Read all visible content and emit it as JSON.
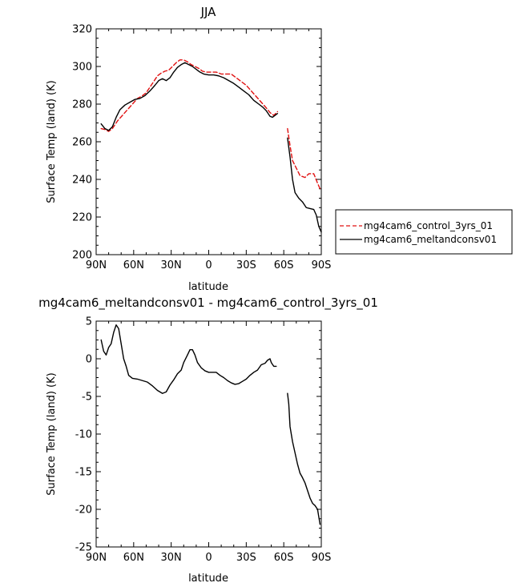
{
  "chart_data": [
    {
      "type": "line",
      "title": "JJA",
      "xlabel": "latitude",
      "ylabel": "Surface Temp (land) (K)",
      "x_tick_labels": [
        "90N",
        "60N",
        "30N",
        "0",
        "30S",
        "60S",
        "90S"
      ],
      "x_tick_values": [
        90,
        60,
        30,
        0,
        -30,
        -60,
        -90
      ],
      "xlim": [
        90,
        -90
      ],
      "ylim": [
        200,
        320
      ],
      "y_ticks": [
        200,
        220,
        240,
        260,
        280,
        300,
        320
      ],
      "legend_position": "right",
      "series": [
        {
          "name": "mg4cam6_control_3yrs_01",
          "color": "#e01010",
          "dash": "dashed",
          "segments": [
            [
              [
                86,
                267
              ],
              [
                83,
                266.5
              ],
              [
                80,
                265.5
              ],
              [
                77,
                267
              ],
              [
                73,
                271
              ],
              [
                69,
                274
              ],
              [
                65,
                277
              ],
              [
                61,
                280
              ],
              [
                57,
                283
              ],
              [
                53,
                284.5
              ],
              [
                50,
                286
              ],
              [
                47,
                289
              ],
              [
                44,
                292
              ],
              [
                41,
                295
              ],
              [
                38,
                296.5
              ],
              [
                35,
                297.5
              ],
              [
                32,
                298
              ],
              [
                29,
                300
              ],
              [
                26,
                302
              ],
              [
                23,
                303.5
              ],
              [
                20,
                303.5
              ],
              [
                17,
                302.5
              ],
              [
                14,
                301
              ],
              [
                11,
                300
              ],
              [
                8,
                299
              ],
              [
                5,
                297.5
              ],
              [
                2,
                297
              ],
              [
                -2,
                297
              ],
              [
                -6,
                297
              ],
              [
                -10,
                296
              ],
              [
                -14,
                296
              ],
              [
                -18,
                296
              ],
              [
                -22,
                294
              ],
              [
                -26,
                292
              ],
              [
                -30,
                290
              ],
              [
                -34,
                287
              ],
              [
                -38,
                284
              ],
              [
                -42,
                281
              ],
              [
                -46,
                278
              ],
              [
                -49,
                275.5
              ],
              [
                -52,
                274
              ],
              [
                -55,
                276
              ]
            ],
            [
              [
                -63,
                267
              ],
              [
                -65,
                258
              ],
              [
                -67,
                250
              ],
              [
                -70,
                246
              ],
              [
                -73,
                242
              ],
              [
                -77,
                241
              ],
              [
                -80,
                243
              ],
              [
                -84,
                243
              ],
              [
                -87,
                238
              ],
              [
                -89,
                235
              ]
            ]
          ]
        },
        {
          "name": "mg4cam6_meltandconsv01",
          "color": "#000000",
          "dash": "solid",
          "segments": [
            [
              [
                86,
                269.5
              ],
              [
                83,
                267
              ],
              [
                80,
                266
              ],
              [
                77,
                268
              ],
              [
                74,
                273
              ],
              [
                71,
                277
              ],
              [
                67,
                279.5
              ],
              [
                63,
                281
              ],
              [
                59,
                282.5
              ],
              [
                55,
                283
              ],
              [
                51,
                284.5
              ],
              [
                47,
                287
              ],
              [
                43,
                290
              ],
              [
                40,
                292.5
              ],
              [
                37,
                293.5
              ],
              [
                34,
                292.5
              ],
              [
                31,
                294
              ],
              [
                28,
                297
              ],
              [
                25,
                299.5
              ],
              [
                22,
                301
              ],
              [
                19,
                302
              ],
              [
                16,
                301
              ],
              [
                13,
                300
              ],
              [
                10,
                298.5
              ],
              [
                7,
                297
              ],
              [
                4,
                296
              ],
              [
                0,
                295.5
              ],
              [
                -4,
                295.5
              ],
              [
                -8,
                295
              ],
              [
                -12,
                294
              ],
              [
                -16,
                292.5
              ],
              [
                -20,
                291
              ],
              [
                -24,
                289
              ],
              [
                -28,
                287
              ],
              [
                -32,
                285
              ],
              [
                -36,
                282
              ],
              [
                -40,
                280
              ],
              [
                -43,
                278.5
              ],
              [
                -46,
                276.5
              ],
              [
                -49,
                273.5
              ],
              [
                -51,
                273
              ],
              [
                -53,
                274
              ],
              [
                -55,
                275
              ]
            ],
            [
              [
                -63,
                262
              ],
              [
                -65,
                252
              ],
              [
                -67,
                240
              ],
              [
                -69,
                233
              ],
              [
                -72,
                230
              ],
              [
                -75,
                228
              ],
              [
                -78,
                225
              ],
              [
                -81,
                224.5
              ],
              [
                -84,
                224
              ],
              [
                -86,
                221
              ],
              [
                -88,
                215
              ],
              [
                -90,
                212
              ]
            ]
          ]
        }
      ]
    },
    {
      "type": "line",
      "title": "mg4cam6_meltandconsv01 - mg4cam6_control_3yrs_01",
      "xlabel": "latitude",
      "ylabel": "Surface Temp (land) (K)",
      "x_tick_labels": [
        "90N",
        "60N",
        "30N",
        "0",
        "30S",
        "60S",
        "90S"
      ],
      "x_tick_values": [
        90,
        60,
        30,
        0,
        -30,
        -60,
        -90
      ],
      "xlim": [
        90,
        -90
      ],
      "ylim": [
        -25,
        5
      ],
      "y_ticks": [
        -25,
        -20,
        -15,
        -10,
        -5,
        0,
        5
      ],
      "series": [
        {
          "name": "",
          "color": "#000000",
          "dash": "solid",
          "segments": [
            [
              [
                86,
                2.5
              ],
              [
                84,
                1
              ],
              [
                82,
                0.5
              ],
              [
                80,
                1.5
              ],
              [
                78,
                2
              ],
              [
                76,
                3.5
              ],
              [
                74,
                4.5
              ],
              [
                72,
                4
              ],
              [
                70,
                2
              ],
              [
                68,
                0
              ],
              [
                66,
                -1
              ],
              [
                64,
                -2.2
              ],
              [
                61,
                -2.6
              ],
              [
                57,
                -2.7
              ],
              [
                53,
                -2.9
              ],
              [
                49,
                -3.1
              ],
              [
                45,
                -3.6
              ],
              [
                41,
                -4.2
              ],
              [
                37,
                -4.6
              ],
              [
                34,
                -4.4
              ],
              [
                31,
                -3.5
              ],
              [
                28,
                -2.8
              ],
              [
                25,
                -2
              ],
              [
                22,
                -1.5
              ],
              [
                20,
                -0.5
              ],
              [
                17,
                0.5
              ],
              [
                15,
                1.2
              ],
              [
                13,
                1.2
              ],
              [
                11,
                0.5
              ],
              [
                9,
                -0.5
              ],
              [
                6,
                -1.2
              ],
              [
                3,
                -1.6
              ],
              [
                0,
                -1.8
              ],
              [
                -3,
                -1.8
              ],
              [
                -6,
                -1.8
              ],
              [
                -9,
                -2.2
              ],
              [
                -12,
                -2.5
              ],
              [
                -15,
                -2.9
              ],
              [
                -18,
                -3.2
              ],
              [
                -21,
                -3.4
              ],
              [
                -24,
                -3.3
              ],
              [
                -27,
                -3
              ],
              [
                -30,
                -2.7
              ],
              [
                -33,
                -2.2
              ],
              [
                -36,
                -1.8
              ],
              [
                -39,
                -1.5
              ],
              [
                -42,
                -0.8
              ],
              [
                -45,
                -0.6
              ],
              [
                -47,
                -0.2
              ],
              [
                -49,
                0
              ],
              [
                -50,
                -0.5
              ],
              [
                -52,
                -1
              ],
              [
                -54,
                -1
              ]
            ],
            [
              [
                -63,
                -4.6
              ],
              [
                -64,
                -6
              ],
              [
                -65,
                -9
              ],
              [
                -67,
                -11
              ],
              [
                -69,
                -12.5
              ],
              [
                -71,
                -14
              ],
              [
                -73,
                -15.2
              ],
              [
                -75,
                -15.8
              ],
              [
                -77,
                -16.5
              ],
              [
                -79,
                -17.5
              ],
              [
                -81,
                -18.5
              ],
              [
                -83,
                -19.2
              ],
              [
                -85,
                -19.5
              ],
              [
                -87,
                -20
              ],
              [
                -89,
                -22
              ]
            ]
          ]
        }
      ]
    }
  ]
}
